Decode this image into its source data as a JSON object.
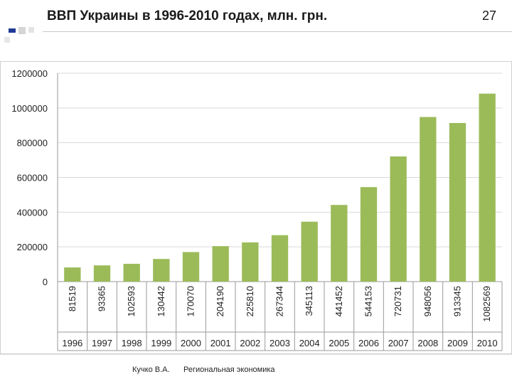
{
  "slide": {
    "title": "ВВП Украины в 1996-2010 годах, млн. грн.",
    "number": "27"
  },
  "footer": {
    "author": "Кучко В.А.",
    "course": "Региональная экономика"
  },
  "colors": {
    "bar": "#9bbb59",
    "grid": "#d9d9d9",
    "deco_blue": "#1f3a93",
    "deco_gray": "#c8c8c8"
  },
  "chart_data": {
    "type": "bar",
    "categories": [
      "1996",
      "1997",
      "1998",
      "1999",
      "2000",
      "2001",
      "2002",
      "2003",
      "2004",
      "2005",
      "2006",
      "2007",
      "2008",
      "2009",
      "2010"
    ],
    "values": [
      81519,
      93365,
      102593,
      130442,
      170070,
      204190,
      225810,
      267344,
      345113,
      441452,
      544153,
      720731,
      948056,
      913345,
      1082569
    ],
    "data_labels": [
      "81519",
      "93365",
      "102593",
      "130442",
      "170070",
      "204190",
      "225810",
      "267344",
      "345113",
      "441452",
      "544153",
      "720731",
      "948056",
      "913345",
      "1082569"
    ],
    "yticks": [
      "1200000",
      "1000000",
      "800000",
      "600000",
      "400000",
      "200000",
      "0"
    ],
    "ytick_values": [
      1200000,
      1000000,
      800000,
      600000,
      400000,
      200000,
      0
    ],
    "ylim": [
      0,
      1200000
    ],
    "grid": true,
    "legend": "none"
  }
}
